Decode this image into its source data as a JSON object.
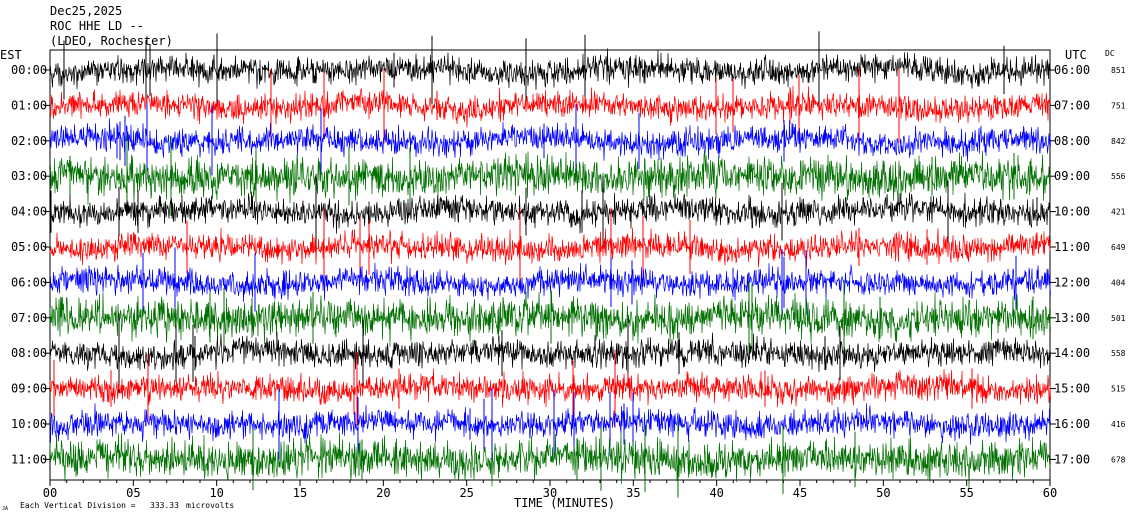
{
  "header": {
    "date": "Dec25,2025",
    "station": "ROC HHE LD --",
    "network": "(LDEO, Rochester)"
  },
  "left_axis_label": "EST",
  "right_axis_label": "UTC",
  "dc_label": "DC",
  "footer": {
    "scale_prefix": "Each Vertical Division =",
    "scale_value": "333.33",
    "scale_unit": "microvolts",
    "small_mark": "JA"
  },
  "chart_data": {
    "type": "line",
    "title": "Dec25,2025 ROC HHE LD -- (LDEO, Rochester)",
    "xlabel": "TIME (MINUTES)",
    "xlim": [
      0,
      60
    ],
    "x_ticks": [
      "00",
      "05",
      "10",
      "15",
      "20",
      "25",
      "30",
      "35",
      "40",
      "45",
      "50",
      "55",
      "60"
    ],
    "trace_color_cycle": [
      "#000000",
      "#ff0000",
      "#0000ff",
      "#007000"
    ],
    "rows": [
      {
        "est": "00:00",
        "utc": "06:00",
        "dc": "851",
        "color": "#000000"
      },
      {
        "est": "01:00",
        "utc": "07:00",
        "dc": "751",
        "color": "#ff0000"
      },
      {
        "est": "02:00",
        "utc": "08:00",
        "dc": "842",
        "color": "#0000ff"
      },
      {
        "est": "03:00",
        "utc": "09:00",
        "dc": "556",
        "color": "#007000"
      },
      {
        "est": "04:00",
        "utc": "10:00",
        "dc": "421",
        "color": "#000000"
      },
      {
        "est": "05:00",
        "utc": "11:00",
        "dc": "649",
        "color": "#ff0000"
      },
      {
        "est": "06:00",
        "utc": "12:00",
        "dc": "404",
        "color": "#0000ff"
      },
      {
        "est": "07:00",
        "utc": "13:00",
        "dc": "501",
        "color": "#007000"
      },
      {
        "est": "08:00",
        "utc": "14:00",
        "dc": "558",
        "color": "#000000"
      },
      {
        "est": "09:00",
        "utc": "15:00",
        "dc": "515",
        "color": "#ff0000"
      },
      {
        "est": "10:00",
        "utc": "16:00",
        "dc": "416",
        "color": "#0000ff"
      },
      {
        "est": "11:00",
        "utc": "17:00",
        "dc": "678",
        "color": "#007000"
      }
    ]
  }
}
